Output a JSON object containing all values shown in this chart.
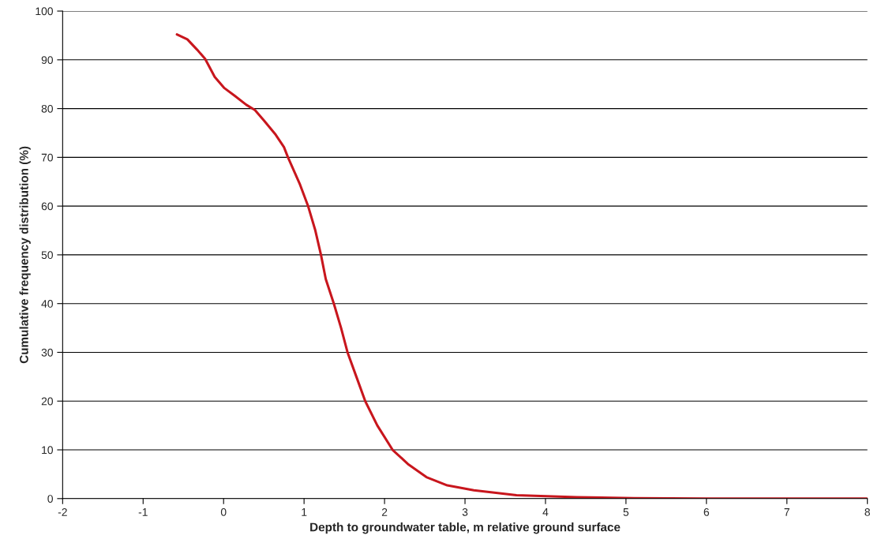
{
  "chart_data": {
    "type": "line",
    "xlabel": "Depth to groundwater table, m relative ground surface",
    "ylabel": "Cumulative frequency distribution (%)",
    "xlim": [
      -2,
      8
    ],
    "xticks": [
      -2,
      -1,
      0,
      1,
      2,
      3,
      4,
      5,
      6,
      7,
      8
    ],
    "ylim": [
      0,
      100
    ],
    "yticks": [
      0,
      10,
      20,
      30,
      40,
      50,
      60,
      70,
      80,
      90,
      100
    ],
    "grid": "y",
    "marker": "none",
    "line_style": "solid",
    "series": [
      {
        "color": "#c8161d",
        "x": [
          -0.58,
          -0.45,
          -0.33,
          -0.23,
          -0.11,
          0.01,
          0.14,
          0.28,
          0.39,
          0.5,
          0.64,
          0.75,
          0.8,
          0.95,
          1.05,
          1.14,
          1.21,
          1.27,
          1.37,
          1.46,
          1.54,
          1.65,
          1.76,
          1.91,
          2.1,
          2.29,
          2.52,
          2.78,
          3.11,
          3.64,
          4.39,
          5.1,
          6,
          7,
          8
        ],
        "values": [
          95.2,
          94.2,
          92.1,
          90.2,
          86.5,
          84.2,
          82.6,
          80.8,
          79.7,
          77.6,
          74.8,
          72.1,
          70,
          64.4,
          60,
          55,
          50,
          45,
          40,
          35,
          30,
          25,
          20,
          15,
          10,
          7.1,
          4.4,
          2.7,
          1.7,
          0.7,
          0.3,
          0.1,
          0,
          0,
          0
        ]
      }
    ]
  }
}
